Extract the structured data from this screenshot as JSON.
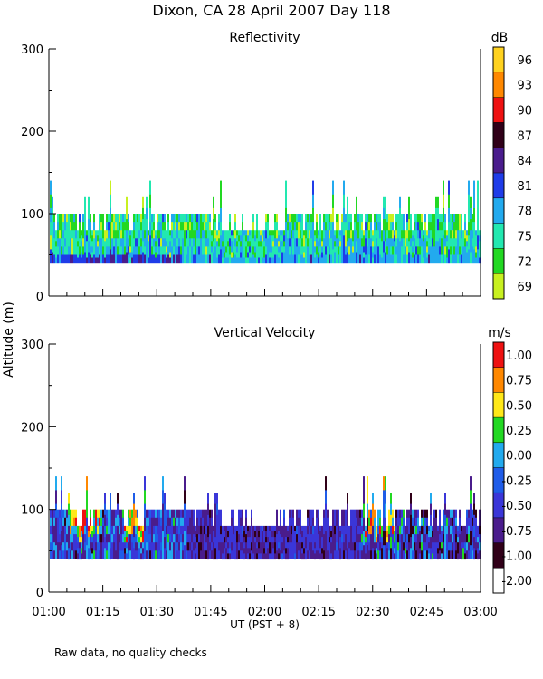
{
  "title": "Dixon, CA 28 April 2007  Day 118",
  "footer_note": "Raw data, no quality checks",
  "chart_data": [
    {
      "type": "heatmap",
      "title": "Reflectivity",
      "ylabel": "Altitude (m)",
      "xlabel": "UT  (PST + 8)",
      "units": "dB",
      "x_ticks": [
        "01:00",
        "01:15",
        "01:30",
        "01:45",
        "02:00",
        "02:15",
        "02:30",
        "02:45",
        "03:00"
      ],
      "xlim_minutes": [
        0,
        120
      ],
      "y_ticks": [
        0,
        100,
        200,
        300
      ],
      "ylim": [
        0,
        300
      ],
      "colorbar": {
        "labels": [
          "96",
          "93",
          "90",
          "87",
          "84",
          "81",
          "78",
          "75",
          "72",
          "69"
        ],
        "colors": [
          "#ffd21f",
          "#ff8800",
          "#ee1111",
          "#300018",
          "#4a1c8c",
          "#1f3ce8",
          "#22aaee",
          "#22e8b0",
          "#22d822",
          "#c8f020"
        ]
      },
      "data_base_m": 40,
      "data_top_m": 100,
      "occasional_top_m": [
        120,
        140
      ]
    },
    {
      "type": "heatmap",
      "title": "Vertical Velocity",
      "ylabel": "Altitude (m)",
      "xlabel": "UT  (PST + 8)",
      "units": "m/s",
      "x_ticks": [
        "01:00",
        "01:15",
        "01:30",
        "01:45",
        "02:00",
        "02:15",
        "02:30",
        "02:45",
        "03:00"
      ],
      "xlim_minutes": [
        0,
        120
      ],
      "y_ticks": [
        0,
        100,
        200,
        300
      ],
      "ylim": [
        0,
        300
      ],
      "colorbar": {
        "labels": [
          "1.00",
          "0.75",
          "0.50",
          "0.25",
          "0.00",
          "-0.25",
          "-0.50",
          "-0.75",
          "-1.00",
          "-2.00"
        ],
        "colors": [
          "#ee1111",
          "#ff8800",
          "#ffe818",
          "#22d822",
          "#22aaee",
          "#1f5ce8",
          "#3a36d8",
          "#4a1c8c",
          "#300018",
          "#ffffff"
        ]
      },
      "data_base_m": 40,
      "data_top_m": 100,
      "occasional_top_m": [
        120,
        140
      ]
    }
  ]
}
